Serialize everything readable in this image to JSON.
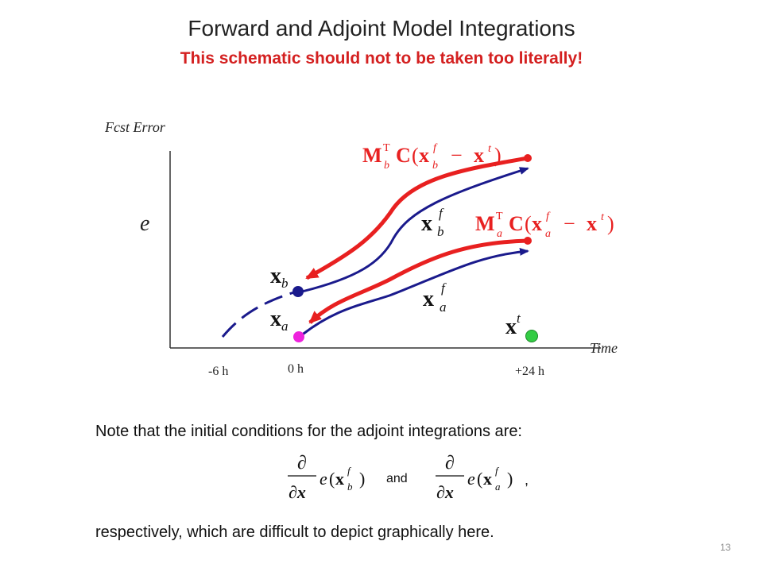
{
  "title": "Forward and Adjoint Model Integrations",
  "subtitle": "This schematic should not to be taken too literally!",
  "diagram": {
    "y_axis_label": "Fcst Error",
    "x_axis_label": "Time",
    "y_symbol": "e",
    "ticks": [
      "-6 h",
      "0 h",
      "+24 h"
    ],
    "labels": {
      "xb": {
        "base": "x",
        "sub": "b"
      },
      "xa": {
        "base": "x",
        "sub": "a"
      },
      "xbf": {
        "base": "x",
        "sup": "f",
        "sub": "b"
      },
      "xaf": {
        "base": "x",
        "sup": "f",
        "sub": "a"
      },
      "xt": {
        "base": "x",
        "sup": "t"
      },
      "adj_b": {
        "M": "M",
        "M_sub": "b",
        "M_sup": "T",
        "C": "C",
        "paren_open": "(",
        "x": "x",
        "x_sup": "f",
        "x_sub": "b",
        "minus": "−",
        "xt": "x",
        "xt_sup": "t",
        "paren_close": ")"
      },
      "adj_a": {
        "M": "M",
        "M_sub": "a",
        "M_sup": "T",
        "C": "C",
        "paren_open": "(",
        "x": "x",
        "x_sup": "f",
        "x_sub": "a",
        "minus": "−",
        "xt": "x",
        "xt_sup": "t",
        "paren_close": ")"
      }
    },
    "colors": {
      "forward": "#1a1a8c",
      "adjoint": "#e82020",
      "xb_point": "#1a1a8c",
      "xa_point": "#ee22dd",
      "xt_point": "#33cc44",
      "axis": "#333333"
    }
  },
  "note": {
    "line1": "Note that the initial conditions for the adjoint integrations are:",
    "formula_partial": "∂",
    "formula_denom": "∂x",
    "formula_e": "e",
    "formula_x": "x",
    "formula_sup": "f",
    "sub_b": "b",
    "sub_a": "a",
    "paren_open": "(",
    "paren_close": ")",
    "and": "and",
    "comma": ",",
    "line2": "respectively, which are difficult to depict graphically here."
  },
  "page_number": "13"
}
